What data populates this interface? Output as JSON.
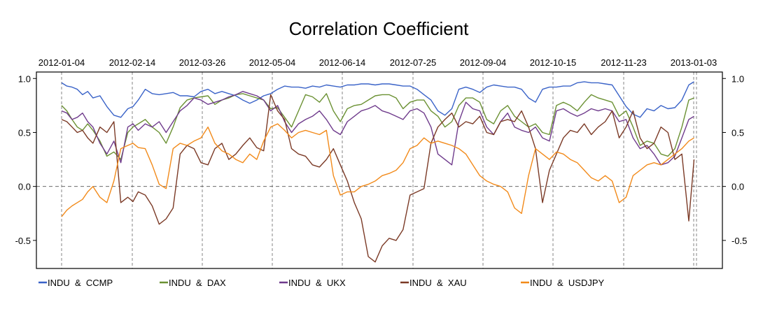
{
  "chart_data": {
    "type": "line",
    "title": "Correlation Coefficient",
    "xlabel": "",
    "ylabel": "",
    "x_tick_labels": [
      "2012-01-04",
      "2012-02-14",
      "2012-03-26",
      "2012-05-04",
      "2012-06-14",
      "2012-07-25",
      "2012-09-04",
      "2012-10-15",
      "2012-11-23",
      "2013-01-03"
    ],
    "y_ticks": [
      1.0,
      0.5,
      0.0,
      -0.5
    ],
    "y_tick_labels": [
      "1.0",
      "0.5",
      "0.0",
      "-0.5"
    ],
    "ylim": [
      -0.76,
      1.06
    ],
    "x_range_days": [
      0,
      364
    ],
    "reference_line": 0,
    "legend_placement": "bottom",
    "series": [
      {
        "name": "INDU  &  CCMP",
        "color": "#3a63c8",
        "x": [
          0,
          3,
          6,
          9,
          12,
          15,
          18,
          22,
          26,
          30,
          34,
          38,
          41,
          44,
          48,
          52,
          56,
          60,
          64,
          68,
          72,
          76,
          80,
          84,
          88,
          92,
          96,
          100,
          104,
          108,
          112,
          116,
          120,
          124,
          128,
          132,
          136,
          140,
          144,
          148,
          152,
          156,
          160,
          164,
          168,
          172,
          176,
          180,
          184,
          188,
          192,
          196,
          200,
          204,
          208,
          212,
          216,
          220,
          224,
          228,
          232,
          236,
          240,
          244,
          248,
          252,
          256,
          260,
          264,
          268,
          272,
          276,
          280,
          284,
          288,
          292,
          296,
          300,
          304,
          308,
          312,
          316,
          320,
          324,
          328,
          332,
          336,
          340,
          344,
          348,
          352,
          356,
          360,
          363
        ],
        "y": [
          0.96,
          0.93,
          0.92,
          0.9,
          0.85,
          0.88,
          0.82,
          0.84,
          0.74,
          0.66,
          0.64,
          0.72,
          0.74,
          0.8,
          0.9,
          0.86,
          0.85,
          0.86,
          0.87,
          0.84,
          0.84,
          0.83,
          0.88,
          0.9,
          0.86,
          0.88,
          0.86,
          0.84,
          0.8,
          0.77,
          0.8,
          0.84,
          0.86,
          0.9,
          0.93,
          0.92,
          0.92,
          0.91,
          0.93,
          0.92,
          0.94,
          0.93,
          0.92,
          0.94,
          0.94,
          0.95,
          0.95,
          0.94,
          0.95,
          0.95,
          0.94,
          0.93,
          0.93,
          0.9,
          0.85,
          0.8,
          0.7,
          0.66,
          0.72,
          0.9,
          0.92,
          0.9,
          0.87,
          0.92,
          0.94,
          0.93,
          0.92,
          0.92,
          0.9,
          0.82,
          0.78,
          0.9,
          0.92,
          0.92,
          0.93,
          0.93,
          0.96,
          0.97,
          0.96,
          0.96,
          0.95,
          0.94,
          0.84,
          0.74,
          0.67,
          0.64,
          0.72,
          0.7,
          0.75,
          0.72,
          0.73,
          0.8,
          0.94,
          0.97
        ]
      },
      {
        "name": "INDU  &  DAX",
        "color": "#6b9133",
        "x": [
          0,
          3,
          6,
          9,
          12,
          15,
          18,
          22,
          26,
          30,
          34,
          38,
          41,
          44,
          48,
          52,
          56,
          60,
          64,
          68,
          72,
          76,
          80,
          84,
          88,
          92,
          96,
          100,
          104,
          108,
          112,
          116,
          120,
          124,
          128,
          132,
          136,
          140,
          144,
          148,
          152,
          156,
          160,
          164,
          168,
          172,
          176,
          180,
          184,
          188,
          192,
          196,
          200,
          204,
          208,
          212,
          216,
          220,
          224,
          228,
          232,
          236,
          240,
          244,
          248,
          252,
          256,
          260,
          264,
          268,
          272,
          276,
          280,
          284,
          288,
          292,
          296,
          300,
          304,
          308,
          312,
          316,
          320,
          324,
          328,
          332,
          336,
          340,
          344,
          348,
          352,
          356,
          360,
          363
        ],
        "y": [
          0.75,
          0.7,
          0.62,
          0.55,
          0.52,
          0.58,
          0.52,
          0.42,
          0.28,
          0.32,
          0.25,
          0.5,
          0.55,
          0.58,
          0.62,
          0.55,
          0.5,
          0.4,
          0.55,
          0.73,
          0.8,
          0.82,
          0.83,
          0.84,
          0.76,
          0.8,
          0.82,
          0.85,
          0.86,
          0.84,
          0.82,
          0.8,
          0.72,
          0.73,
          0.64,
          0.55,
          0.7,
          0.85,
          0.83,
          0.78,
          0.86,
          0.7,
          0.6,
          0.72,
          0.75,
          0.76,
          0.8,
          0.84,
          0.85,
          0.85,
          0.82,
          0.72,
          0.78,
          0.8,
          0.8,
          0.7,
          0.65,
          0.55,
          0.6,
          0.75,
          0.82,
          0.82,
          0.78,
          0.62,
          0.58,
          0.7,
          0.75,
          0.65,
          0.6,
          0.55,
          0.58,
          0.5,
          0.48,
          0.75,
          0.78,
          0.75,
          0.7,
          0.78,
          0.85,
          0.82,
          0.8,
          0.78,
          0.65,
          0.7,
          0.55,
          0.38,
          0.42,
          0.4,
          0.3,
          0.28,
          0.35,
          0.55,
          0.8,
          0.82
        ]
      },
      {
        "name": "INDU  &  UKX",
        "color": "#6f3b8c",
        "x": [
          0,
          3,
          6,
          9,
          12,
          15,
          18,
          22,
          26,
          30,
          34,
          38,
          41,
          44,
          48,
          52,
          56,
          60,
          64,
          68,
          72,
          76,
          80,
          84,
          88,
          92,
          96,
          100,
          104,
          108,
          112,
          116,
          120,
          124,
          128,
          132,
          136,
          140,
          144,
          148,
          152,
          156,
          160,
          164,
          168,
          172,
          176,
          180,
          184,
          188,
          192,
          196,
          200,
          204,
          208,
          212,
          216,
          220,
          224,
          228,
          232,
          236,
          240,
          244,
          248,
          252,
          256,
          260,
          264,
          268,
          272,
          276,
          280,
          284,
          288,
          292,
          296,
          300,
          304,
          308,
          312,
          316,
          320,
          324,
          328,
          332,
          336,
          340,
          344,
          348,
          352,
          356,
          360,
          363
        ],
        "y": [
          0.7,
          0.68,
          0.62,
          0.64,
          0.68,
          0.6,
          0.55,
          0.4,
          0.3,
          0.42,
          0.22,
          0.55,
          0.58,
          0.52,
          0.58,
          0.55,
          0.6,
          0.5,
          0.6,
          0.7,
          0.75,
          0.82,
          0.8,
          0.76,
          0.78,
          0.8,
          0.83,
          0.85,
          0.88,
          0.86,
          0.84,
          0.8,
          0.7,
          0.75,
          0.6,
          0.5,
          0.58,
          0.62,
          0.65,
          0.7,
          0.62,
          0.52,
          0.48,
          0.6,
          0.65,
          0.7,
          0.72,
          0.75,
          0.7,
          0.68,
          0.65,
          0.62,
          0.7,
          0.72,
          0.68,
          0.55,
          0.3,
          0.25,
          0.2,
          0.6,
          0.78,
          0.72,
          0.7,
          0.55,
          0.48,
          0.6,
          0.68,
          0.55,
          0.52,
          0.5,
          0.55,
          0.45,
          0.42,
          0.7,
          0.72,
          0.68,
          0.65,
          0.68,
          0.72,
          0.7,
          0.72,
          0.7,
          0.6,
          0.62,
          0.45,
          0.35,
          0.38,
          0.3,
          0.2,
          0.22,
          0.28,
          0.45,
          0.62,
          0.65
        ]
      },
      {
        "name": "INDU  &  XAU",
        "color": "#7b3a26",
        "x": [
          0,
          3,
          6,
          9,
          12,
          15,
          18,
          22,
          26,
          30,
          34,
          38,
          41,
          44,
          48,
          52,
          56,
          60,
          64,
          68,
          72,
          76,
          80,
          84,
          88,
          92,
          96,
          100,
          104,
          108,
          112,
          116,
          120,
          124,
          128,
          132,
          136,
          140,
          144,
          148,
          152,
          156,
          160,
          164,
          168,
          172,
          176,
          180,
          184,
          188,
          192,
          196,
          200,
          204,
          208,
          212,
          216,
          220,
          224,
          228,
          232,
          236,
          240,
          244,
          248,
          252,
          256,
          260,
          264,
          268,
          272,
          276,
          280,
          284,
          288,
          292,
          296,
          300,
          304,
          308,
          312,
          316,
          320,
          324,
          328,
          332,
          336,
          340,
          344,
          348,
          352,
          356,
          360,
          363
        ],
        "y": [
          0.62,
          0.6,
          0.55,
          0.5,
          0.52,
          0.45,
          0.4,
          0.55,
          0.5,
          0.6,
          -0.15,
          -0.1,
          -0.14,
          -0.05,
          -0.08,
          -0.18,
          -0.35,
          -0.3,
          -0.2,
          0.3,
          0.38,
          0.35,
          0.22,
          0.2,
          0.35,
          0.4,
          0.25,
          0.3,
          0.38,
          0.45,
          0.36,
          0.33,
          0.85,
          0.7,
          0.62,
          0.35,
          0.3,
          0.28,
          0.2,
          0.18,
          0.25,
          0.35,
          0.2,
          0.05,
          -0.15,
          -0.3,
          -0.65,
          -0.7,
          -0.55,
          -0.48,
          -0.5,
          -0.4,
          -0.08,
          -0.05,
          -0.02,
          0.4,
          0.55,
          0.62,
          0.68,
          0.55,
          0.6,
          0.58,
          0.65,
          0.5,
          0.48,
          0.6,
          0.62,
          0.6,
          0.7,
          0.55,
          0.35,
          -0.15,
          0.15,
          0.3,
          0.45,
          0.52,
          0.5,
          0.58,
          0.48,
          0.55,
          0.6,
          0.7,
          0.45,
          0.55,
          0.7,
          0.45,
          0.35,
          0.4,
          0.55,
          0.5,
          0.25,
          0.3,
          -0.32,
          0.25
        ]
      },
      {
        "name": "INDU  &  USDJPY",
        "color": "#f28a1a",
        "x": [
          0,
          3,
          6,
          9,
          12,
          15,
          18,
          22,
          26,
          30,
          34,
          38,
          41,
          44,
          48,
          52,
          56,
          60,
          64,
          68,
          72,
          76,
          80,
          84,
          88,
          92,
          96,
          100,
          104,
          108,
          112,
          116,
          120,
          124,
          128,
          132,
          136,
          140,
          144,
          148,
          152,
          156,
          160,
          164,
          168,
          172,
          176,
          180,
          184,
          188,
          192,
          196,
          200,
          204,
          208,
          212,
          216,
          220,
          224,
          228,
          232,
          236,
          240,
          244,
          248,
          252,
          256,
          260,
          264,
          268,
          272,
          276,
          280,
          284,
          288,
          292,
          296,
          300,
          304,
          308,
          312,
          316,
          320,
          324,
          328,
          332,
          336,
          340,
          344,
          348,
          352,
          356,
          360,
          363
        ],
        "y": [
          -0.28,
          -0.22,
          -0.18,
          -0.15,
          -0.12,
          -0.05,
          0.0,
          -0.1,
          -0.15,
          0.05,
          0.35,
          0.38,
          0.4,
          0.36,
          0.35,
          0.2,
          0.02,
          -0.02,
          0.35,
          0.4,
          0.38,
          0.42,
          0.45,
          0.55,
          0.4,
          0.33,
          0.3,
          0.25,
          0.22,
          0.3,
          0.25,
          0.42,
          0.55,
          0.58,
          0.52,
          0.45,
          0.5,
          0.52,
          0.5,
          0.48,
          0.52,
          0.1,
          -0.08,
          -0.05,
          -0.05,
          0.0,
          0.02,
          0.05,
          0.1,
          0.12,
          0.15,
          0.22,
          0.35,
          0.38,
          0.45,
          0.4,
          0.42,
          0.4,
          0.38,
          0.35,
          0.3,
          0.2,
          0.1,
          0.05,
          0.02,
          0.0,
          -0.05,
          -0.2,
          -0.25,
          0.1,
          0.35,
          0.3,
          0.25,
          0.32,
          0.3,
          0.25,
          0.22,
          0.15,
          0.08,
          0.05,
          0.1,
          0.05,
          -0.15,
          -0.1,
          0.1,
          0.15,
          0.2,
          0.22,
          0.2,
          0.25,
          0.3,
          0.35,
          0.42,
          0.45
        ]
      }
    ]
  }
}
